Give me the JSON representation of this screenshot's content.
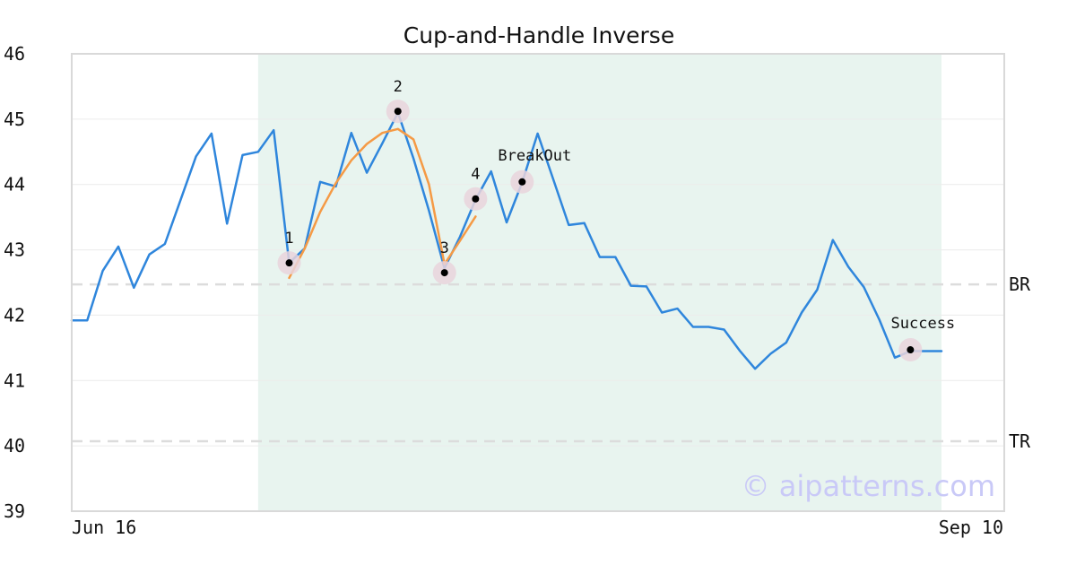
{
  "chart_data": {
    "type": "line",
    "title": "Cup-and-Handle Inverse",
    "xlabel": "",
    "ylabel": "",
    "ylim": [
      39,
      46
    ],
    "y_ticks": [
      39,
      40,
      41,
      42,
      43,
      44,
      45,
      46
    ],
    "x_tick_labels": [
      "Jun 16",
      "Sep 10"
    ],
    "grid": true,
    "legend": "none",
    "colors": {
      "price": "#2f86dc",
      "fit": "#f59a45",
      "highlight": "#e8f4ef",
      "marker_halo": "#e9d3dc",
      "level": "#dcdcdc"
    },
    "highlight_range": [
      12,
      56
    ],
    "series": [
      {
        "values": [
          41.92,
          41.92,
          42.68,
          43.05,
          42.42,
          42.93,
          43.09,
          43.76,
          44.43,
          44.78,
          43.4,
          44.45,
          44.5,
          44.83,
          42.8,
          43.02,
          44.04,
          43.97,
          44.79,
          44.18,
          44.63,
          45.1,
          44.4,
          43.6,
          42.72,
          43.2,
          43.77,
          44.2,
          43.42,
          44.03,
          44.78,
          44.08,
          43.38,
          43.41,
          42.89,
          42.89,
          42.45,
          42.44,
          42.04,
          42.1,
          41.82,
          41.82,
          41.78,
          41.46,
          41.18,
          41.41,
          41.58,
          42.04,
          42.39,
          43.15,
          42.74,
          42.43,
          41.93,
          41.35,
          41.45,
          41.45,
          41.45
        ]
      },
      {
        "start_index": 14,
        "values": [
          42.57,
          43.02,
          43.58,
          44.02,
          44.37,
          44.62,
          44.79,
          44.85,
          44.69,
          44.0,
          42.78,
          43.14,
          43.51
        ]
      }
    ],
    "levels": [
      {
        "label": "BR",
        "value": 42.47
      },
      {
        "label": "TR",
        "value": 40.07
      }
    ],
    "points": [
      {
        "label": "1",
        "index": 14,
        "value": 42.8
      },
      {
        "label": "2",
        "index": 21,
        "value": 45.12
      },
      {
        "label": "3",
        "index": 24,
        "value": 42.65
      },
      {
        "label": "4",
        "index": 26,
        "value": 43.78
      },
      {
        "label": "BreakOut",
        "index": 29,
        "value": 44.04
      },
      {
        "label": "Success",
        "index": 54,
        "value": 41.47
      }
    ],
    "watermark": "© aipatterns.com"
  }
}
